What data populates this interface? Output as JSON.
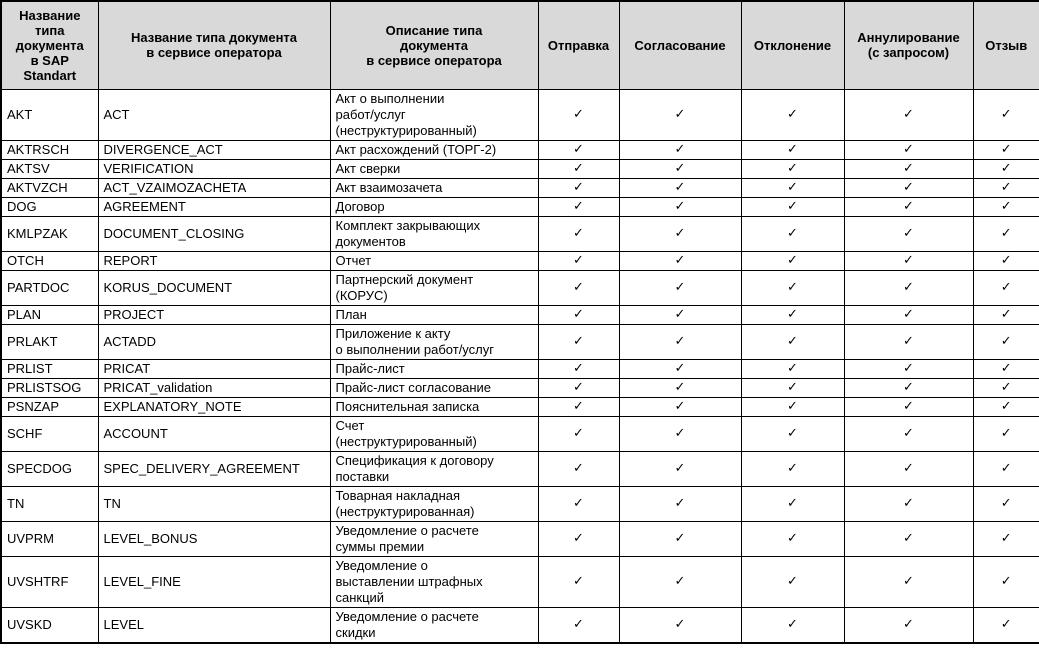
{
  "table": {
    "headers": [
      "Название\nтипа\nдокумента\nв SAP\nStandart",
      "Название типа документа\nв сервисе оператора",
      "Описание типа\nдокумента\nв сервисе оператора",
      "Отправка",
      "Согласование",
      "Отклонение",
      "Аннулирование\n(с запросом)",
      "Отзыв"
    ],
    "check_glyph": "✓",
    "rows": [
      {
        "sap": "AKT",
        "operator": "ACT",
        "description": "Акт о выполнении\nработ/услуг\n(неструктурированный)",
        "flags": [
          true,
          true,
          true,
          true,
          true
        ]
      },
      {
        "sap": "AKTRSCH",
        "operator": "DIVERGENCE_ACT",
        "description": "Акт расхождений (ТОРГ-2)",
        "flags": [
          true,
          true,
          true,
          true,
          true
        ]
      },
      {
        "sap": "AKTSV",
        "operator": "VERIFICATION",
        "description": "Акт сверки",
        "flags": [
          true,
          true,
          true,
          true,
          true
        ]
      },
      {
        "sap": "AKTVZCH",
        "operator": "ACT_VZAIMOZACHETA",
        "description": "Акт взаимозачета",
        "flags": [
          true,
          true,
          true,
          true,
          true
        ]
      },
      {
        "sap": "DOG",
        "operator": "AGREEMENT",
        "description": "Договор",
        "flags": [
          true,
          true,
          true,
          true,
          true
        ]
      },
      {
        "sap": "KMLPZAK",
        "operator": "DOCUMENT_CLOSING",
        "description": "Комплект закрывающих\nдокументов",
        "flags": [
          true,
          true,
          true,
          true,
          true
        ]
      },
      {
        "sap": "OTCH",
        "operator": "REPORT",
        "description": "Отчет",
        "flags": [
          true,
          true,
          true,
          true,
          true
        ]
      },
      {
        "sap": "PARTDOC",
        "operator": "KORUS_DOCUMENT",
        "description": "Партнерский документ\n(КОРУС)",
        "flags": [
          true,
          true,
          true,
          true,
          true
        ]
      },
      {
        "sap": "PLAN",
        "operator": "PROJECT",
        "description": "План",
        "flags": [
          true,
          true,
          true,
          true,
          true
        ]
      },
      {
        "sap": "PRLAKT",
        "operator": "ACTADD",
        "description": "Приложение к акту\nо выполнении работ/услуг",
        "flags": [
          true,
          true,
          true,
          true,
          true
        ]
      },
      {
        "sap": "PRLIST",
        "operator": "PRICAT",
        "description": "Прайс-лист",
        "flags": [
          true,
          true,
          true,
          true,
          true
        ]
      },
      {
        "sap": "PRLISTSOG",
        "operator": "PRICAT_validation",
        "description": "Прайс-лист согласование",
        "flags": [
          true,
          true,
          true,
          true,
          true
        ]
      },
      {
        "sap": "PSNZAP",
        "operator": "EXPLANATORY_NOTE",
        "description": "Пояснительная записка",
        "flags": [
          true,
          true,
          true,
          true,
          true
        ]
      },
      {
        "sap": "SCHF",
        "operator": "ACCOUNT",
        "description": "Счет\n(неструктурированный)",
        "flags": [
          true,
          true,
          true,
          true,
          true
        ]
      },
      {
        "sap": "SPECDOG",
        "operator": "SPEC_DELIVERY_AGREEMENT",
        "description": "Спецификация к договору\nпоставки",
        "flags": [
          true,
          true,
          true,
          true,
          true
        ]
      },
      {
        "sap": "TN",
        "operator": "TN",
        "description": "Товарная накладная\n(неструктурированная)",
        "flags": [
          true,
          true,
          true,
          true,
          true
        ]
      },
      {
        "sap": "UVPRM",
        "operator": "LEVEL_BONUS",
        "description": "Уведомление о расчете\nсуммы премии",
        "flags": [
          true,
          true,
          true,
          true,
          true
        ]
      },
      {
        "sap": "UVSHTRF",
        "operator": "LEVEL_FINE",
        "description": "Уведомление о\nвыставлении штрафных\nсанкций",
        "flags": [
          true,
          true,
          true,
          true,
          true
        ]
      },
      {
        "sap": "UVSKD",
        "operator": "LEVEL",
        "description": "Уведомление о расчете\nскидки",
        "flags": [
          true,
          true,
          true,
          true,
          true
        ]
      }
    ]
  },
  "colors": {
    "header_bg": "#d9d9d9",
    "border": "#000000",
    "check": "#3d3d3d"
  }
}
